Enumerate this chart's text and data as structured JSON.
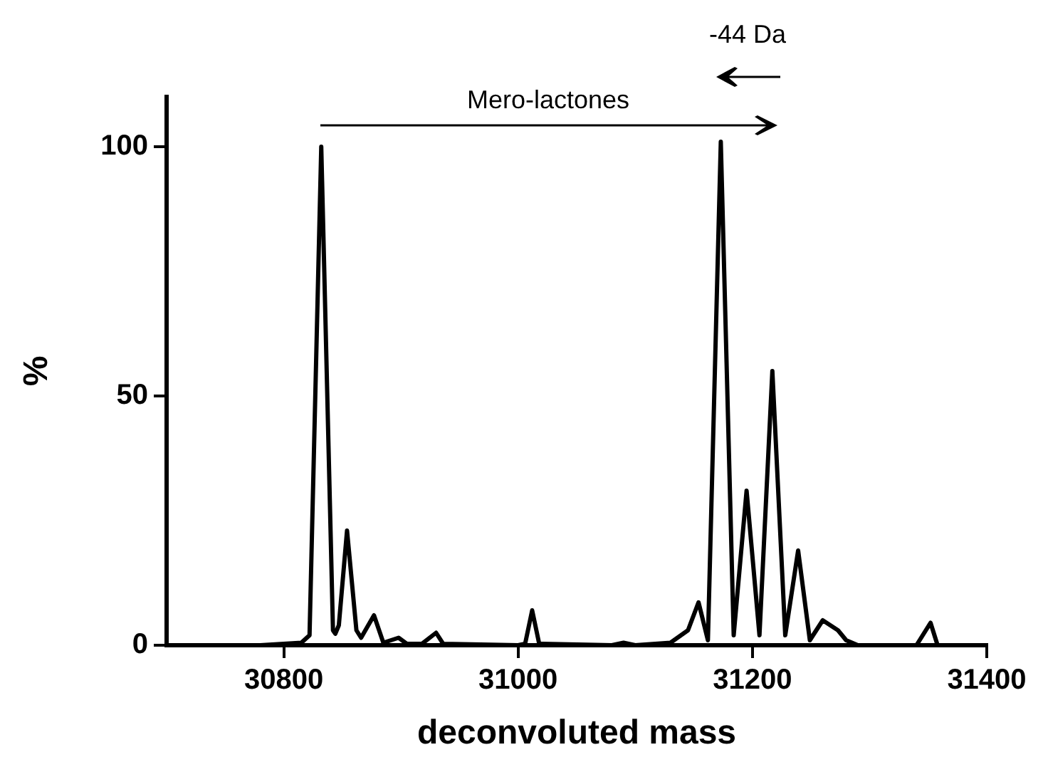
{
  "chart_data": {
    "type": "line",
    "xlabel": "deconvoluted mass",
    "ylabel": "%",
    "xlim": [
      30700,
      31400
    ],
    "xticks": [
      30800,
      31000,
      31200,
      31400
    ],
    "ylim": [
      0,
      110
    ],
    "yticks": [
      0,
      50,
      100
    ],
    "marker": "none",
    "line_style": "solid",
    "annotations": [
      "Mero-lactones",
      "-44 Da"
    ],
    "series": [
      {
        "color": "#000000",
        "x": [
          30700,
          30780,
          30800,
          30815,
          30822,
          30832,
          30842,
          30844,
          30847,
          30854,
          30862,
          30866,
          30877,
          30885,
          30898,
          30905,
          30918,
          30930,
          30936,
          31000,
          31006,
          31012,
          31018,
          31080,
          31090,
          31100,
          31130,
          31145,
          31154,
          31162,
          31173,
          31184,
          31195,
          31206,
          31217,
          31228,
          31239,
          31249,
          31260,
          31273,
          31280,
          31290,
          31340,
          31352,
          31358,
          31400
        ],
        "values": [
          0,
          0,
          0.3,
          0.5,
          2,
          100,
          3,
          2.3,
          4,
          23,
          3,
          1.5,
          6,
          0.5,
          1.5,
          0.3,
          0.3,
          2.5,
          0.3,
          0,
          0.3,
          7,
          0.3,
          0,
          0.5,
          0,
          0.5,
          3,
          8.6,
          1,
          101,
          2,
          31,
          2,
          55,
          2,
          19,
          1,
          5,
          3,
          1,
          0,
          0,
          4.5,
          0,
          0
        ]
      }
    ]
  }
}
